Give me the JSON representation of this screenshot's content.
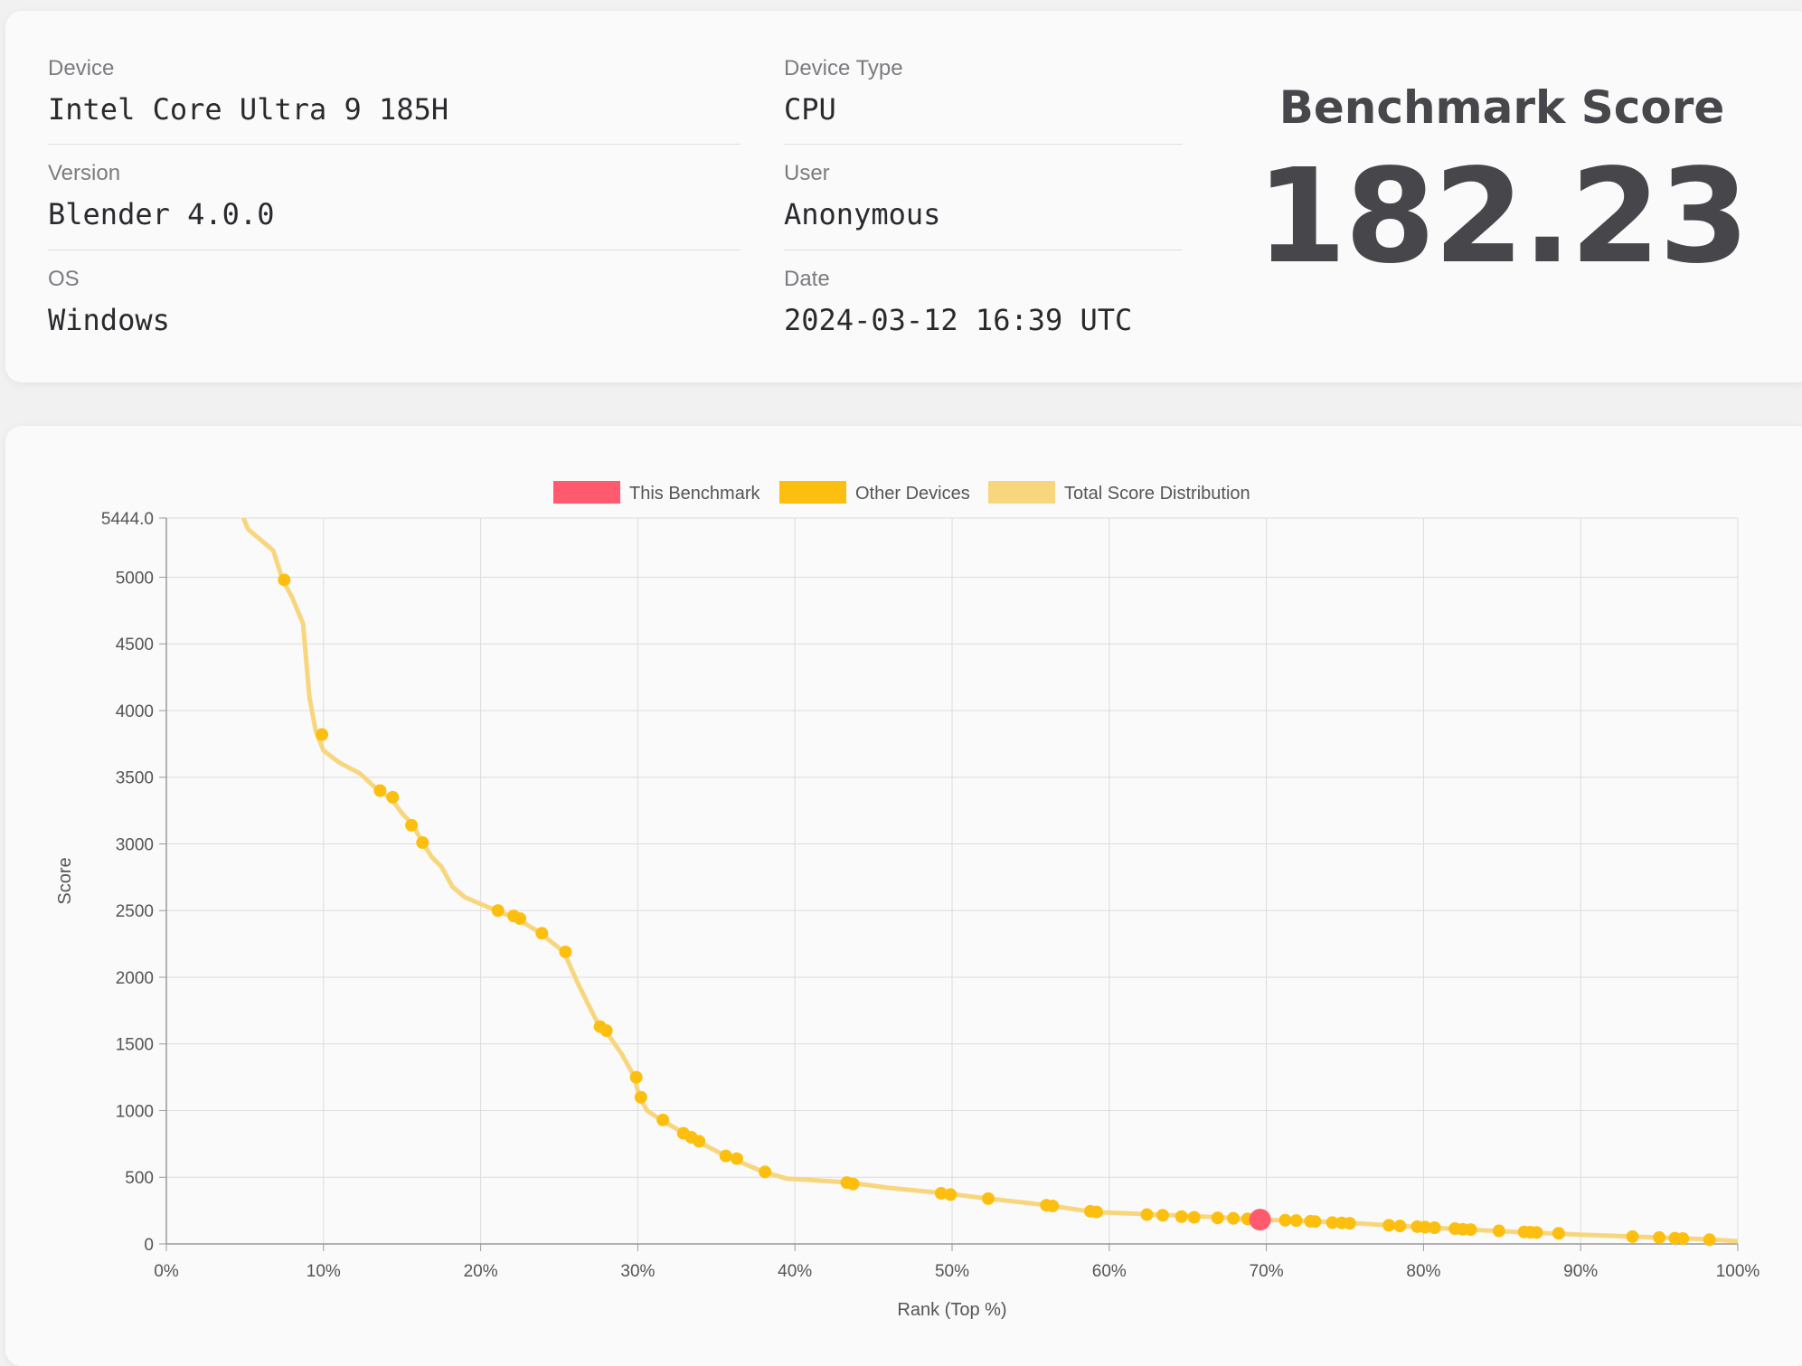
{
  "info": {
    "device": {
      "label": "Device",
      "value": "Intel Core Ultra 9 185H"
    },
    "device_type": {
      "label": "Device Type",
      "value": "CPU"
    },
    "version": {
      "label": "Version",
      "value": "Blender 4.0.0"
    },
    "user": {
      "label": "User",
      "value": "Anonymous"
    },
    "os": {
      "label": "OS",
      "value": "Windows"
    },
    "date": {
      "label": "Date",
      "value": "2024-03-12 16:39 UTC"
    }
  },
  "score": {
    "title": "Benchmark Score",
    "value": "182.23"
  },
  "colors": {
    "this_benchmark": "#ff5a6e",
    "other_devices": "#fcbf10",
    "distribution": "#f8d67e",
    "grid": "#dcdcdc",
    "text_dark": "#46464b"
  },
  "chart_data": {
    "type": "line",
    "legend": [
      "This Benchmark",
      "Other Devices",
      "Total Score Distribution"
    ],
    "legend_position": "top-center",
    "xlabel": "Rank (Top %)",
    "ylabel": "Score",
    "xlim": [
      0,
      100
    ],
    "ylim": [
      0,
      5444.0
    ],
    "x_ticks": [
      "0%",
      "10%",
      "20%",
      "30%",
      "40%",
      "50%",
      "60%",
      "70%",
      "80%",
      "90%",
      "100%"
    ],
    "y_ticks": [
      {
        "v": 0,
        "label": "0"
      },
      {
        "v": 500,
        "label": "500"
      },
      {
        "v": 1000,
        "label": "1000"
      },
      {
        "v": 1500,
        "label": "1500"
      },
      {
        "v": 2000,
        "label": "2000"
      },
      {
        "v": 2500,
        "label": "2500"
      },
      {
        "v": 3000,
        "label": "3000"
      },
      {
        "v": 3500,
        "label": "3500"
      },
      {
        "v": 4000,
        "label": "4000"
      },
      {
        "v": 4500,
        "label": "4500"
      },
      {
        "v": 5000,
        "label": "5000"
      },
      {
        "v": 5444,
        "label": "5444.0"
      }
    ],
    "grid": true,
    "distribution": [
      [
        4.9,
        5444
      ],
      [
        5.2,
        5360
      ],
      [
        6.0,
        5280
      ],
      [
        6.8,
        5200
      ],
      [
        7.4,
        4980
      ],
      [
        8.0,
        4850
      ],
      [
        8.7,
        4650
      ],
      [
        9.1,
        4100
      ],
      [
        9.5,
        3850
      ],
      [
        10.0,
        3700
      ],
      [
        11.0,
        3610
      ],
      [
        12.3,
        3530
      ],
      [
        13.5,
        3400
      ],
      [
        14.3,
        3340
      ],
      [
        15.0,
        3230
      ],
      [
        15.7,
        3140
      ],
      [
        16.3,
        3010
      ],
      [
        16.9,
        2900
      ],
      [
        17.5,
        2830
      ],
      [
        18.2,
        2680
      ],
      [
        19.0,
        2600
      ],
      [
        20.0,
        2550
      ],
      [
        21.0,
        2500
      ],
      [
        22.3,
        2440
      ],
      [
        23.7,
        2340
      ],
      [
        25.3,
        2190
      ],
      [
        26.2,
        1950
      ],
      [
        27.0,
        1760
      ],
      [
        27.6,
        1620
      ],
      [
        28.0,
        1590
      ],
      [
        29.0,
        1420
      ],
      [
        29.8,
        1250
      ],
      [
        30.1,
        1100
      ],
      [
        30.6,
        1000
      ],
      [
        31.4,
        935
      ],
      [
        32.5,
        860
      ],
      [
        33.8,
        770
      ],
      [
        35.6,
        660
      ],
      [
        38.0,
        540
      ],
      [
        39.5,
        490
      ],
      [
        41.0,
        480
      ],
      [
        43.5,
        460
      ],
      [
        46.0,
        420
      ],
      [
        49.5,
        380
      ],
      [
        52.3,
        340
      ],
      [
        56.1,
        290
      ],
      [
        59.0,
        240
      ],
      [
        63.0,
        220
      ],
      [
        67.0,
        200
      ],
      [
        69.6,
        182
      ],
      [
        72.0,
        175
      ],
      [
        75.0,
        160
      ],
      [
        80.0,
        125
      ],
      [
        85.0,
        95
      ],
      [
        90.0,
        70
      ],
      [
        95.0,
        48
      ],
      [
        98.0,
        35
      ],
      [
        100.0,
        20
      ]
    ],
    "other_devices": [
      [
        7.5,
        4980
      ],
      [
        9.9,
        3820
      ],
      [
        13.6,
        3400
      ],
      [
        14.4,
        3350
      ],
      [
        15.6,
        3140
      ],
      [
        16.3,
        3010
      ],
      [
        21.1,
        2500
      ],
      [
        22.1,
        2460
      ],
      [
        22.5,
        2440
      ],
      [
        23.9,
        2330
      ],
      [
        25.4,
        2190
      ],
      [
        27.6,
        1630
      ],
      [
        28.0,
        1600
      ],
      [
        29.9,
        1250
      ],
      [
        30.2,
        1100
      ],
      [
        31.6,
        930
      ],
      [
        32.9,
        830
      ],
      [
        33.4,
        800
      ],
      [
        33.9,
        770
      ],
      [
        35.6,
        660
      ],
      [
        36.3,
        640
      ],
      [
        38.1,
        540
      ],
      [
        43.3,
        460
      ],
      [
        43.7,
        450
      ],
      [
        49.3,
        380
      ],
      [
        49.9,
        370
      ],
      [
        52.3,
        340
      ],
      [
        56.0,
        290
      ],
      [
        56.4,
        285
      ],
      [
        58.8,
        245
      ],
      [
        59.2,
        240
      ],
      [
        62.4,
        220
      ],
      [
        63.4,
        215
      ],
      [
        64.6,
        205
      ],
      [
        65.4,
        200
      ],
      [
        66.9,
        195
      ],
      [
        67.9,
        192
      ],
      [
        68.8,
        188
      ],
      [
        71.2,
        178
      ],
      [
        71.9,
        175
      ],
      [
        72.8,
        170
      ],
      [
        73.1,
        168
      ],
      [
        74.2,
        160
      ],
      [
        74.8,
        158
      ],
      [
        75.3,
        155
      ],
      [
        77.8,
        140
      ],
      [
        78.5,
        135
      ],
      [
        79.6,
        130
      ],
      [
        80.1,
        126
      ],
      [
        80.7,
        122
      ],
      [
        82.0,
        115
      ],
      [
        82.5,
        110
      ],
      [
        83.0,
        108
      ],
      [
        84.8,
        98
      ],
      [
        86.4,
        90
      ],
      [
        86.8,
        88
      ],
      [
        87.2,
        86
      ],
      [
        88.6,
        80
      ],
      [
        93.3,
        55
      ],
      [
        95.0,
        48
      ],
      [
        96.0,
        43
      ],
      [
        96.5,
        41
      ],
      [
        98.2,
        32
      ]
    ],
    "this_benchmark": [
      69.6,
      182.23
    ]
  }
}
